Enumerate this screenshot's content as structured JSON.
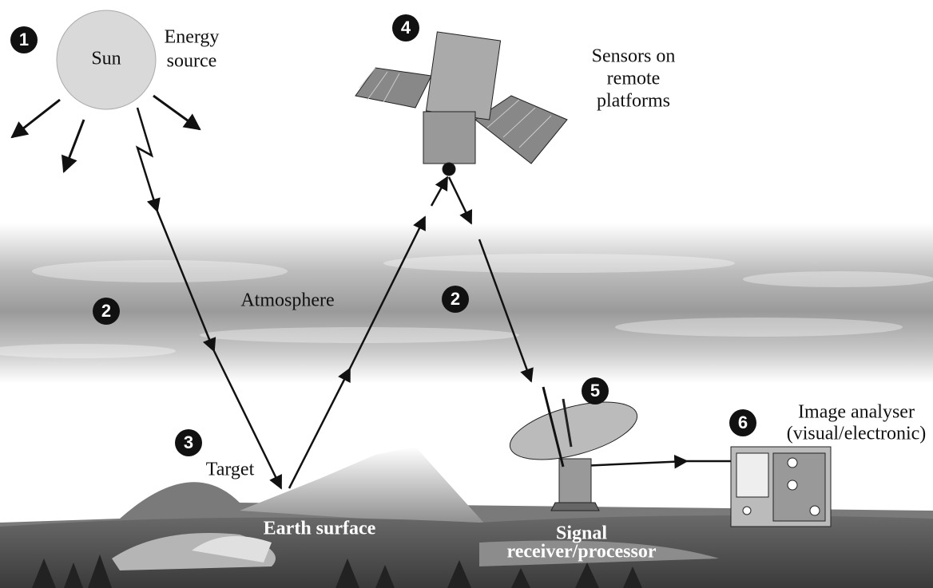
{
  "sun": "Sun",
  "markers": [
    "1",
    "2",
    "2",
    "3",
    "4",
    "5",
    "6"
  ],
  "labels": [
    {
      "lines": [
        "Energy",
        "source"
      ]
    },
    {
      "lines": [
        "Atmosphere"
      ]
    },
    {
      "lines": [
        "Target"
      ]
    },
    {
      "lines": [
        "Sensors on",
        "remote",
        "platforms"
      ]
    },
    {
      "lines": [
        "Signal",
        "receiver/processor"
      ]
    },
    {
      "lines": [
        "Image analyser",
        "(visual/electronic)"
      ]
    },
    {
      "lines": [
        "Earth surface"
      ]
    }
  ]
}
